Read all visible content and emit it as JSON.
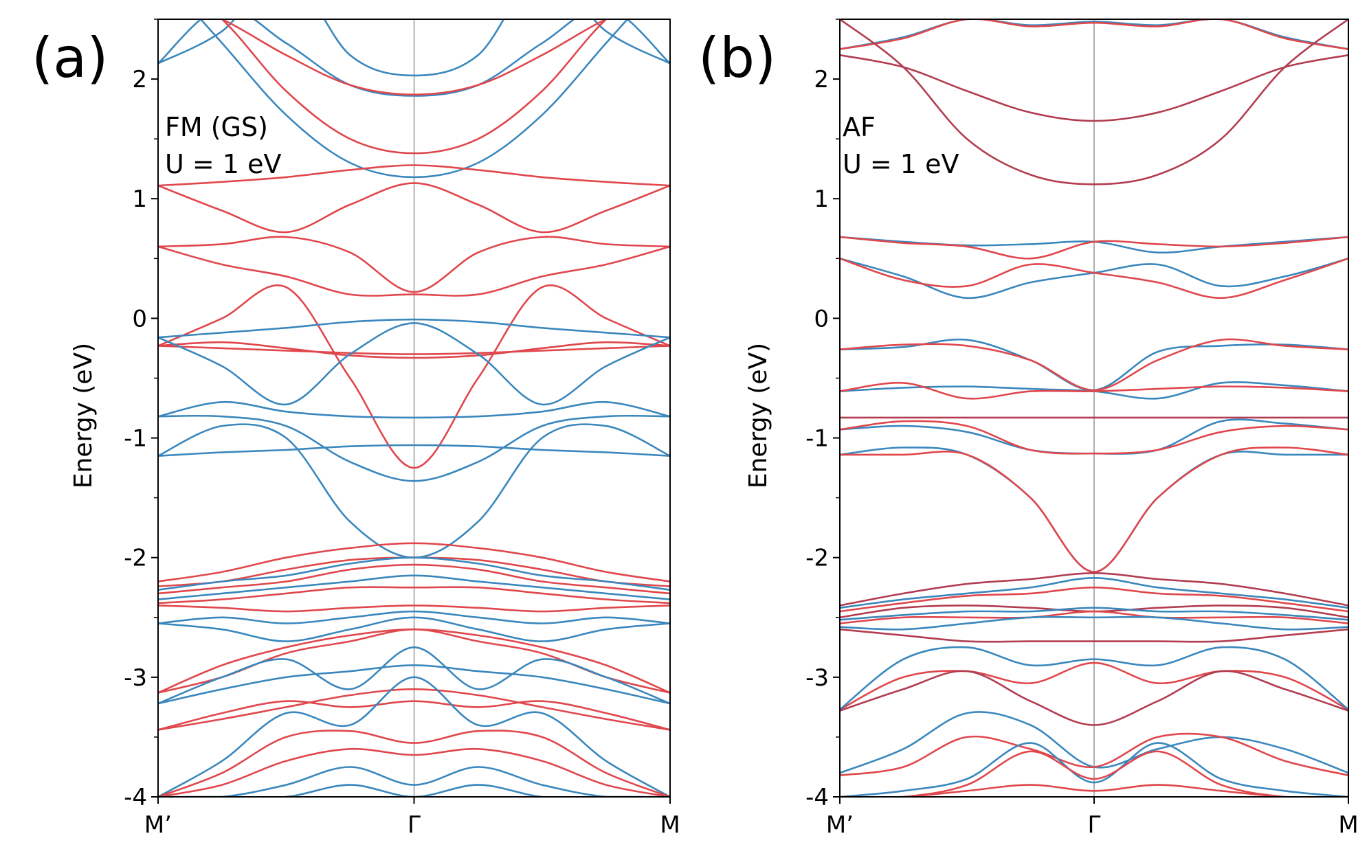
{
  "chart_data": [
    {
      "type": "line",
      "panel_label": "(a)",
      "annotation": [
        "FM (GS)",
        "U = 1 eV"
      ],
      "xlabel": "",
      "ylabel": "Energy (eV)",
      "x_ticks": [
        "M’",
        "Γ",
        "M"
      ],
      "y_ticks": [
        "2",
        "1",
        "0",
        "-1",
        "-2",
        "-3",
        "-4"
      ],
      "ylim": [
        -4,
        2.5
      ],
      "x": [
        0,
        0.125,
        0.25,
        0.375,
        0.5,
        0.625,
        0.75,
        0.875,
        1
      ],
      "series": [
        {
          "color": "#3a87bd",
          "values": [
            2.13,
            2.4,
            2.9,
            2.2,
            2.03,
            2.2,
            2.9,
            2.4,
            2.13
          ]
        },
        {
          "color": "#3a87bd",
          "values": [
            2.13,
            2.6,
            2.3,
            1.95,
            1.86,
            1.95,
            2.3,
            2.6,
            2.13
          ]
        },
        {
          "color": "#3a87bd",
          "values": [
            2.9,
            2.3,
            1.7,
            1.3,
            1.18,
            1.3,
            1.7,
            2.3,
            2.9
          ]
        },
        {
          "color": "#e0474c",
          "values": [
            2.7,
            2.5,
            2.2,
            1.95,
            1.87,
            1.95,
            2.2,
            2.5,
            2.7
          ]
        },
        {
          "color": "#e0474c",
          "values": [
            2.9,
            2.5,
            1.9,
            1.5,
            1.38,
            1.5,
            1.9,
            2.5,
            2.9
          ]
        },
        {
          "color": "#e0474c",
          "values": [
            1.11,
            1.14,
            1.18,
            1.24,
            1.28,
            1.24,
            1.18,
            1.14,
            1.11
          ]
        },
        {
          "color": "#e0474c",
          "values": [
            1.11,
            0.9,
            0.72,
            0.95,
            1.13,
            0.95,
            0.72,
            0.9,
            1.11
          ]
        },
        {
          "color": "#e0474c",
          "values": [
            0.6,
            0.62,
            0.68,
            0.55,
            0.22,
            0.55,
            0.68,
            0.62,
            0.6
          ]
        },
        {
          "color": "#e0474c",
          "values": [
            0.6,
            0.45,
            0.35,
            0.2,
            0.2,
            0.2,
            0.35,
            0.45,
            0.6
          ]
        },
        {
          "color": "#e0474c",
          "values": [
            -0.23,
            0.0,
            0.26,
            -0.5,
            -1.25,
            -0.5,
            0.26,
            0.0,
            -0.23
          ]
        },
        {
          "color": "#e0474c",
          "values": [
            -0.23,
            -0.25,
            -0.27,
            -0.29,
            -0.3,
            -0.29,
            -0.27,
            -0.25,
            -0.23
          ]
        },
        {
          "color": "#e0474c",
          "values": [
            -0.23,
            -0.2,
            -0.25,
            -0.31,
            -0.33,
            -0.31,
            -0.25,
            -0.2,
            -0.23
          ]
        },
        {
          "color": "#3a87bd",
          "values": [
            -0.16,
            -0.12,
            -0.08,
            -0.03,
            -0.01,
            -0.03,
            -0.08,
            -0.12,
            -0.16
          ]
        },
        {
          "color": "#3a87bd",
          "values": [
            -0.16,
            -0.4,
            -0.72,
            -0.3,
            -0.04,
            -0.3,
            -0.72,
            -0.4,
            -0.16
          ]
        },
        {
          "color": "#3a87bd",
          "values": [
            -0.82,
            -0.7,
            -0.78,
            -0.82,
            -0.83,
            -0.82,
            -0.78,
            -0.7,
            -0.82
          ]
        },
        {
          "color": "#3a87bd",
          "values": [
            -0.82,
            -0.82,
            -0.9,
            -1.2,
            -1.36,
            -1.2,
            -0.9,
            -0.82,
            -0.82
          ]
        },
        {
          "color": "#3a87bd",
          "values": [
            -1.15,
            -1.12,
            -1.1,
            -1.07,
            -1.06,
            -1.07,
            -1.1,
            -1.12,
            -1.15
          ]
        },
        {
          "color": "#3a87bd",
          "values": [
            -1.15,
            -0.9,
            -1.0,
            -1.7,
            -2.0,
            -1.7,
            -1.0,
            -0.9,
            -1.15
          ]
        },
        {
          "color": "#e0474c",
          "values": [
            -2.2,
            -2.12,
            -2.0,
            -1.92,
            -1.88,
            -1.92,
            -2.0,
            -2.12,
            -2.2
          ]
        },
        {
          "color": "#e0474c",
          "values": [
            -2.24,
            -2.2,
            -2.1,
            -2.02,
            -2.0,
            -2.02,
            -2.1,
            -2.2,
            -2.24
          ]
        },
        {
          "color": "#3a87bd",
          "values": [
            -2.27,
            -2.2,
            -2.15,
            -2.05,
            -2.0,
            -2.05,
            -2.15,
            -2.2,
            -2.27
          ]
        },
        {
          "color": "#e0474c",
          "values": [
            -2.3,
            -2.25,
            -2.2,
            -2.1,
            -2.06,
            -2.1,
            -2.2,
            -2.25,
            -2.3
          ]
        },
        {
          "color": "#3a87bd",
          "values": [
            -2.35,
            -2.3,
            -2.25,
            -2.2,
            -2.15,
            -2.2,
            -2.25,
            -2.3,
            -2.35
          ]
        },
        {
          "color": "#e0474c",
          "values": [
            -2.38,
            -2.35,
            -2.3,
            -2.25,
            -2.25,
            -2.25,
            -2.3,
            -2.35,
            -2.38
          ]
        },
        {
          "color": "#e0474c",
          "values": [
            -2.4,
            -2.42,
            -2.45,
            -2.42,
            -2.4,
            -2.42,
            -2.45,
            -2.42,
            -2.4
          ]
        },
        {
          "color": "#3a87bd",
          "values": [
            -2.55,
            -2.5,
            -2.55,
            -2.5,
            -2.45,
            -2.5,
            -2.55,
            -2.5,
            -2.55
          ]
        },
        {
          "color": "#3a87bd",
          "values": [
            -2.55,
            -2.6,
            -2.7,
            -2.6,
            -2.5,
            -2.6,
            -2.7,
            -2.6,
            -2.55
          ]
        },
        {
          "color": "#e0474c",
          "values": [
            -3.13,
            -2.9,
            -2.75,
            -2.65,
            -2.6,
            -2.65,
            -2.75,
            -2.9,
            -3.13
          ]
        },
        {
          "color": "#e0474c",
          "values": [
            -3.13,
            -3.0,
            -2.8,
            -2.7,
            -2.6,
            -2.7,
            -2.8,
            -3.0,
            -3.13
          ]
        },
        {
          "color": "#3a87bd",
          "values": [
            -3.22,
            -3.0,
            -2.85,
            -3.1,
            -2.75,
            -3.1,
            -2.85,
            -3.0,
            -3.22
          ]
        },
        {
          "color": "#3a87bd",
          "values": [
            -3.22,
            -3.1,
            -3.0,
            -2.95,
            -2.9,
            -2.95,
            -3.0,
            -3.1,
            -3.22
          ]
        },
        {
          "color": "#e0474c",
          "values": [
            -3.44,
            -3.35,
            -3.25,
            -3.15,
            -3.1,
            -3.15,
            -3.25,
            -3.35,
            -3.44
          ]
        },
        {
          "color": "#e0474c",
          "values": [
            -3.44,
            -3.3,
            -3.2,
            -3.25,
            -3.2,
            -3.25,
            -3.2,
            -3.3,
            -3.44
          ]
        },
        {
          "color": "#3a87bd",
          "values": [
            -4.0,
            -3.7,
            -3.3,
            -3.4,
            -3.0,
            -3.4,
            -3.3,
            -3.7,
            -4.0
          ]
        },
        {
          "color": "#e0474c",
          "values": [
            -4.0,
            -3.8,
            -3.5,
            -3.45,
            -3.55,
            -3.45,
            -3.5,
            -3.8,
            -4.0
          ]
        },
        {
          "color": "#e0474c",
          "values": [
            -4.0,
            -3.9,
            -3.7,
            -3.6,
            -3.65,
            -3.6,
            -3.7,
            -3.9,
            -4.0
          ]
        },
        {
          "color": "#3a87bd",
          "values": [
            -4.0,
            -4.0,
            -3.9,
            -3.75,
            -3.9,
            -3.75,
            -3.9,
            -4.0,
            -4.0
          ]
        },
        {
          "color": "#3a87bd",
          "values": [
            -4.0,
            -4.0,
            -4.0,
            -3.9,
            -4.0,
            -3.9,
            -4.0,
            -4.0,
            -4.0
          ]
        }
      ]
    },
    {
      "type": "line",
      "panel_label": "(b)",
      "annotation": [
        "AF",
        "U = 1 eV"
      ],
      "xlabel": "",
      "ylabel": "Energy (eV)",
      "x_ticks": [
        "M’",
        "Γ",
        "M"
      ],
      "y_ticks": [
        "2",
        "1",
        "0",
        "-1",
        "-2",
        "-3",
        "-4"
      ],
      "ylim": [
        -4,
        2.5
      ],
      "x": [
        0,
        0.125,
        0.25,
        0.375,
        0.5,
        0.625,
        0.75,
        0.875,
        1
      ],
      "series": [
        {
          "color": "#3a87bd",
          "values": [
            2.25,
            2.35,
            2.5,
            2.45,
            2.48,
            2.45,
            2.5,
            2.35,
            2.25
          ]
        },
        {
          "color": "#e0474c",
          "values": [
            2.25,
            2.34,
            2.5,
            2.44,
            2.47,
            2.44,
            2.5,
            2.34,
            2.25
          ]
        },
        {
          "color": "#b23c50",
          "values": [
            2.2,
            2.1,
            1.9,
            1.72,
            1.65,
            1.72,
            1.9,
            2.1,
            2.2
          ]
        },
        {
          "color": "#b23c50",
          "values": [
            2.5,
            2.1,
            1.5,
            1.2,
            1.12,
            1.2,
            1.5,
            2.1,
            2.5
          ]
        },
        {
          "color": "#3a87bd",
          "values": [
            0.68,
            0.64,
            0.61,
            0.62,
            0.64,
            0.55,
            0.6,
            0.64,
            0.68
          ]
        },
        {
          "color": "#e0474c",
          "values": [
            0.68,
            0.63,
            0.6,
            0.5,
            0.64,
            0.62,
            0.6,
            0.63,
            0.68
          ]
        },
        {
          "color": "#3a87bd",
          "values": [
            0.5,
            0.35,
            0.17,
            0.3,
            0.38,
            0.45,
            0.27,
            0.35,
            0.5
          ]
        },
        {
          "color": "#e0474c",
          "values": [
            0.5,
            0.32,
            0.27,
            0.45,
            0.38,
            0.3,
            0.17,
            0.32,
            0.5
          ]
        },
        {
          "color": "#3a87bd",
          "values": [
            -0.26,
            -0.24,
            -0.18,
            -0.35,
            -0.6,
            -0.28,
            -0.23,
            -0.22,
            -0.26
          ]
        },
        {
          "color": "#e0474c",
          "values": [
            -0.26,
            -0.22,
            -0.23,
            -0.35,
            -0.6,
            -0.35,
            -0.18,
            -0.23,
            -0.26
          ]
        },
        {
          "color": "#3a87bd",
          "values": [
            -0.61,
            -0.58,
            -0.57,
            -0.59,
            -0.61,
            -0.67,
            -0.54,
            -0.56,
            -0.61
          ]
        },
        {
          "color": "#e0474c",
          "values": [
            -0.61,
            -0.54,
            -0.67,
            -0.61,
            -0.61,
            -0.59,
            -0.57,
            -0.58,
            -0.61
          ]
        },
        {
          "color": "#b23c50",
          "values": [
            -0.83,
            -0.83,
            -0.83,
            -0.83,
            -0.83,
            -0.83,
            -0.83,
            -0.83,
            -0.83
          ]
        },
        {
          "color": "#3a87bd",
          "values": [
            -0.93,
            -0.9,
            -0.95,
            -1.1,
            -1.13,
            -1.1,
            -0.86,
            -0.88,
            -0.93
          ]
        },
        {
          "color": "#e0474c",
          "values": [
            -0.93,
            -0.86,
            -0.9,
            -1.1,
            -1.13,
            -1.1,
            -0.95,
            -0.9,
            -0.93
          ]
        },
        {
          "color": "#3a87bd",
          "values": [
            -1.14,
            -1.08,
            -1.14,
            -1.5,
            -2.12,
            -1.5,
            -1.14,
            -1.14,
            -1.14
          ]
        },
        {
          "color": "#e0474c",
          "values": [
            -1.14,
            -1.14,
            -1.14,
            -1.5,
            -2.12,
            -1.5,
            -1.14,
            -1.08,
            -1.14
          ]
        },
        {
          "color": "#b23c50",
          "values": [
            -2.4,
            -2.3,
            -2.22,
            -2.18,
            -2.13,
            -2.18,
            -2.22,
            -2.3,
            -2.4
          ]
        },
        {
          "color": "#3a87bd",
          "values": [
            -2.42,
            -2.35,
            -2.3,
            -2.25,
            -2.17,
            -2.25,
            -2.3,
            -2.35,
            -2.42
          ]
        },
        {
          "color": "#e0474c",
          "values": [
            -2.45,
            -2.38,
            -2.32,
            -2.3,
            -2.25,
            -2.3,
            -2.32,
            -2.38,
            -2.45
          ]
        },
        {
          "color": "#b23c50",
          "values": [
            -2.5,
            -2.42,
            -2.4,
            -2.42,
            -2.45,
            -2.42,
            -2.4,
            -2.42,
            -2.5
          ]
        },
        {
          "color": "#3a87bd",
          "values": [
            -2.52,
            -2.48,
            -2.45,
            -2.45,
            -2.42,
            -2.45,
            -2.45,
            -2.48,
            -2.52
          ]
        },
        {
          "color": "#e0474c",
          "values": [
            -2.55,
            -2.5,
            -2.5,
            -2.5,
            -2.45,
            -2.5,
            -2.5,
            -2.5,
            -2.55
          ]
        },
        {
          "color": "#3a87bd",
          "values": [
            -2.58,
            -2.6,
            -2.55,
            -2.5,
            -2.5,
            -2.5,
            -2.55,
            -2.6,
            -2.58
          ]
        },
        {
          "color": "#b23c50",
          "values": [
            -2.6,
            -2.65,
            -2.7,
            -2.7,
            -2.7,
            -2.7,
            -2.7,
            -2.65,
            -2.6
          ]
        },
        {
          "color": "#e0474c",
          "values": [
            -3.27,
            -3.0,
            -2.95,
            -3.05,
            -2.88,
            -3.05,
            -2.95,
            -3.0,
            -3.27
          ]
        },
        {
          "color": "#3a87bd",
          "values": [
            -3.27,
            -2.85,
            -2.75,
            -2.9,
            -2.85,
            -2.9,
            -2.75,
            -2.85,
            -3.27
          ]
        },
        {
          "color": "#b23c50",
          "values": [
            -3.28,
            -3.1,
            -2.95,
            -3.2,
            -3.4,
            -3.2,
            -2.95,
            -3.1,
            -3.28
          ]
        },
        {
          "color": "#3a87bd",
          "values": [
            -3.8,
            -3.6,
            -3.3,
            -3.4,
            -3.75,
            -3.6,
            -3.5,
            -3.6,
            -3.8
          ]
        },
        {
          "color": "#e0474c",
          "values": [
            -3.82,
            -3.75,
            -3.5,
            -3.6,
            -3.75,
            -3.5,
            -3.5,
            -3.7,
            -3.82
          ]
        },
        {
          "color": "#3a87bd",
          "values": [
            -4.0,
            -3.95,
            -3.85,
            -3.55,
            -3.88,
            -3.55,
            -3.85,
            -3.95,
            -4.0
          ]
        },
        {
          "color": "#e0474c",
          "values": [
            -4.0,
            -4.0,
            -3.9,
            -3.62,
            -3.85,
            -3.62,
            -3.9,
            -4.0,
            -4.0
          ]
        },
        {
          "color": "#e0474c",
          "values": [
            -4.0,
            -4.0,
            -3.95,
            -3.9,
            -3.95,
            -3.9,
            -3.95,
            -4.0,
            -4.0
          ]
        }
      ]
    }
  ]
}
